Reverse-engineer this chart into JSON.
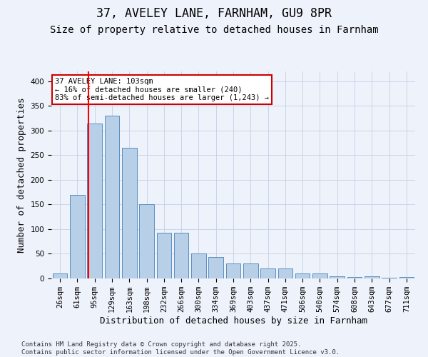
{
  "title": "37, AVELEY LANE, FARNHAM, GU9 8PR",
  "subtitle": "Size of property relative to detached houses in Farnham",
  "xlabel": "Distribution of detached houses by size in Farnham",
  "ylabel": "Number of detached properties",
  "categories": [
    "26sqm",
    "61sqm",
    "95sqm",
    "129sqm",
    "163sqm",
    "198sqm",
    "232sqm",
    "266sqm",
    "300sqm",
    "334sqm",
    "369sqm",
    "403sqm",
    "437sqm",
    "471sqm",
    "506sqm",
    "540sqm",
    "574sqm",
    "608sqm",
    "643sqm",
    "677sqm",
    "711sqm"
  ],
  "values": [
    10,
    170,
    315,
    330,
    265,
    150,
    92,
    92,
    50,
    43,
    30,
    30,
    20,
    20,
    10,
    10,
    4,
    3,
    5,
    1,
    3
  ],
  "bar_color": "#b8cfe8",
  "bar_edge_color": "#5a8fc0",
  "background_color": "#eef2fa",
  "grid_color": "#c5cfe8",
  "red_line_index": 2,
  "annotation_line1": "37 AVELEY LANE: 103sqm",
  "annotation_line2": "← 16% of detached houses are smaller (240)",
  "annotation_line3": "83% of semi-detached houses are larger (1,243) →",
  "annotation_box_facecolor": "#ffffff",
  "annotation_box_edgecolor": "#cc0000",
  "ylim": [
    0,
    420
  ],
  "yticks": [
    0,
    50,
    100,
    150,
    200,
    250,
    300,
    350,
    400
  ],
  "footer_line1": "Contains HM Land Registry data © Crown copyright and database right 2025.",
  "footer_line2": "Contains public sector information licensed under the Open Government Licence v3.0.",
  "title_fontsize": 12,
  "subtitle_fontsize": 10,
  "tick_fontsize": 7.5,
  "ylabel_fontsize": 9,
  "xlabel_fontsize": 9,
  "annotation_fontsize": 7.5,
  "footer_fontsize": 6.5
}
